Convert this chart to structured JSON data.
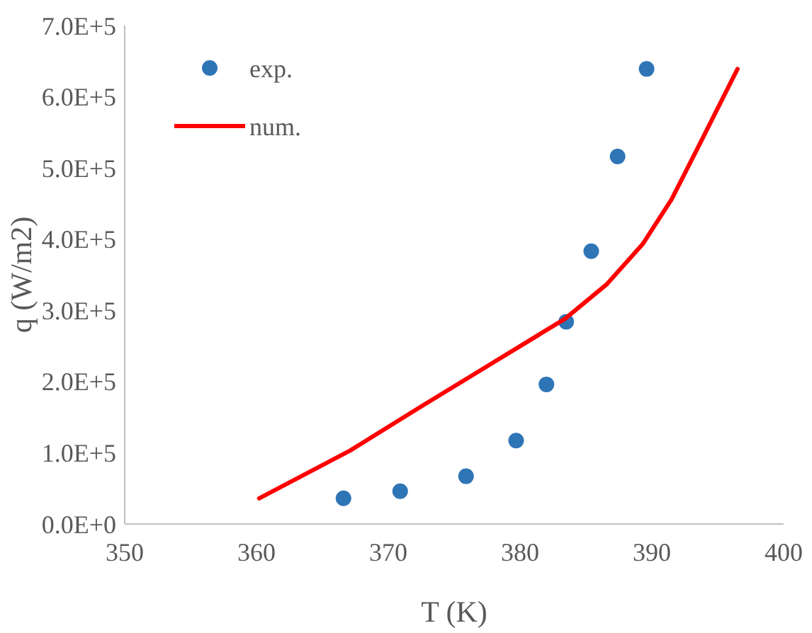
{
  "chart_data": {
    "type": "scatter",
    "xlabel": "T (K)",
    "ylabel": "q (W/m2)",
    "xlim": [
      350,
      400
    ],
    "xticks": [
      350,
      360,
      370,
      380,
      390,
      400
    ],
    "ylim": [
      0,
      700000
    ],
    "yticks": [
      {
        "value": 0,
        "label": "0.0E+0"
      },
      {
        "value": 100000,
        "label": "1.0E+5"
      },
      {
        "value": 200000,
        "label": "2.0E+5"
      },
      {
        "value": 300000,
        "label": "3.0E+5"
      },
      {
        "value": 400000,
        "label": "4.0E+5"
      },
      {
        "value": 500000,
        "label": "5.0E+5"
      },
      {
        "value": 600000,
        "label": "6.0E+5"
      },
      {
        "value": 700000,
        "label": "7.0E+5"
      }
    ],
    "legend": "top left",
    "grid": false,
    "series": [
      {
        "name": "exp.",
        "marker": "circle",
        "color": "#2e75b6",
        "x": [
          366.6,
          370.9,
          375.9,
          379.7,
          382.0,
          383.5,
          385.4,
          387.4,
          389.6
        ],
        "values": [
          36000,
          46000,
          67000,
          117000,
          196000,
          284000,
          383000,
          516000,
          639000
        ]
      },
      {
        "name": "num.",
        "type": "line",
        "color": "#ff0000",
        "x": [
          360.2,
          367.1,
          372.5,
          377.9,
          383.4,
          386.6,
          389.3,
          391.5,
          393.7,
          395.3,
          396.5
        ],
        "values": [
          36000,
          103000,
          165000,
          226000,
          288000,
          337000,
          393000,
          456000,
          536000,
          595000,
          639000
        ]
      }
    ]
  }
}
